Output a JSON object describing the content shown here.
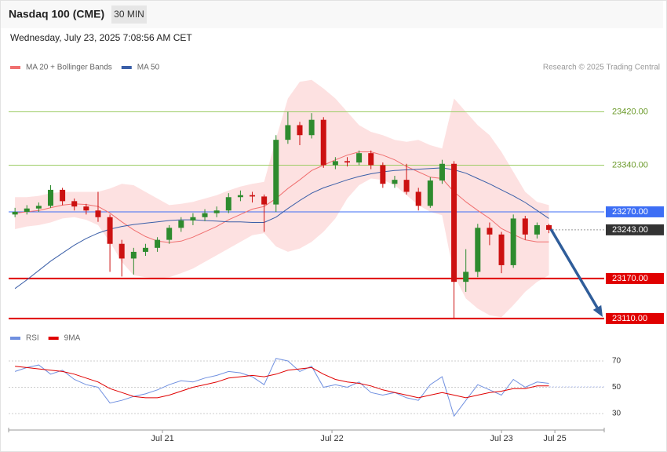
{
  "header": {
    "title": "Nasdaq 100 (CME)",
    "interval": "30 MIN",
    "timestamp": "Wednesday, July 23, 2025 7:08:56 AM CET",
    "credit": "Research © 2025 Trading Central"
  },
  "chart_data": [
    {
      "type": "candlestick",
      "legend": "top-left",
      "up_color": "#2e8b2e",
      "down_color": "#cc1111",
      "x": [
        -0.87,
        -0.8,
        -0.73,
        -0.66,
        -0.59,
        -0.52,
        -0.45,
        -0.38,
        -0.31,
        -0.24,
        -0.17,
        -0.1,
        -0.03,
        0.04,
        0.11,
        0.18,
        0.25,
        0.32,
        0.39,
        0.46,
        0.53,
        0.6,
        0.67,
        0.74,
        0.81,
        0.88,
        0.95,
        1.02,
        1.09,
        1.16,
        1.23,
        1.3,
        1.37,
        1.44,
        1.51,
        1.58,
        1.65,
        1.72,
        1.79,
        1.86,
        1.93,
        2.0,
        2.07,
        2.14,
        2.21,
        2.28
      ],
      "candles": [
        [
          23266,
          23276,
          23262,
          23270
        ],
        [
          23270,
          23280,
          23266,
          23275
        ],
        [
          23275,
          23284,
          23270,
          23279
        ],
        [
          23279,
          23310,
          23276,
          23303
        ],
        [
          23303,
          23306,
          23280,
          23286
        ],
        [
          23286,
          23290,
          23272,
          23278
        ],
        [
          23278,
          23282,
          23266,
          23272
        ],
        [
          23272,
          23300,
          23255,
          23262
        ],
        [
          23262,
          23266,
          23180,
          23222
        ],
        [
          23222,
          23228,
          23173,
          23200
        ],
        [
          23200,
          23216,
          23176,
          23210
        ],
        [
          23210,
          23222,
          23204,
          23216
        ],
        [
          23216,
          23232,
          23210,
          23228
        ],
        [
          23228,
          23250,
          23222,
          23246
        ],
        [
          23246,
          23262,
          23240,
          23257
        ],
        [
          23257,
          23268,
          23250,
          23262
        ],
        [
          23262,
          23274,
          23256,
          23268
        ],
        [
          23268,
          23278,
          23262,
          23272
        ],
        [
          23272,
          23298,
          23268,
          23292
        ],
        [
          23292,
          23302,
          23286,
          23295
        ],
        [
          23295,
          23300,
          23284,
          23293
        ],
        [
          23293,
          23296,
          23240,
          23281
        ],
        [
          23281,
          23385,
          23270,
          23378
        ],
        [
          23378,
          23420,
          23372,
          23400
        ],
        [
          23400,
          23405,
          23370,
          23385
        ],
        [
          23385,
          23418,
          23380,
          23408
        ],
        [
          23408,
          23412,
          23336,
          23340
        ],
        [
          23340,
          23352,
          23334,
          23346
        ],
        [
          23346,
          23352,
          23338,
          23344
        ],
        [
          23344,
          23362,
          23340,
          23358
        ],
        [
          23358,
          23362,
          23334,
          23340
        ],
        [
          23340,
          23344,
          23306,
          23312
        ],
        [
          23312,
          23324,
          23306,
          23318
        ],
        [
          23318,
          23342,
          23296,
          23300
        ],
        [
          23300,
          23306,
          23272,
          23279
        ],
        [
          23279,
          23322,
          23276,
          23317
        ],
        [
          23317,
          23348,
          23312,
          23342
        ],
        [
          23342,
          23346,
          23110,
          23165
        ],
        [
          23165,
          23214,
          23150,
          23180
        ],
        [
          23180,
          23252,
          23172,
          23246
        ],
        [
          23246,
          23254,
          23220,
          23236
        ],
        [
          23236,
          23240,
          23178,
          23190
        ],
        [
          23190,
          23266,
          23186,
          23260
        ],
        [
          23260,
          23264,
          23228,
          23236
        ],
        [
          23236,
          23254,
          23230,
          23250
        ],
        [
          23250,
          23252,
          23238,
          23243
        ]
      ],
      "series": [
        {
          "name": "MA 20 + Bollinger Bands",
          "color": "#f07070",
          "band_color": "#fde1e1",
          "values": [
            23268,
            23270,
            23272,
            23276,
            23280,
            23282,
            23281,
            23278,
            23268,
            23255,
            23243,
            23233,
            23226,
            23224,
            23226,
            23232,
            23240,
            23248,
            23258,
            23266,
            23274,
            23278,
            23290,
            23305,
            23318,
            23332,
            23340,
            23348,
            23355,
            23360,
            23360,
            23355,
            23348,
            23338,
            23330,
            23322,
            23320,
            23300,
            23285,
            23272,
            23260,
            23245,
            23236,
            23228,
            23225,
            23225
          ],
          "upper": [
            23292,
            23292,
            23294,
            23298,
            23300,
            23300,
            23300,
            23300,
            23305,
            23312,
            23310,
            23300,
            23290,
            23280,
            23282,
            23285,
            23290,
            23295,
            23302,
            23308,
            23312,
            23315,
            23380,
            23440,
            23465,
            23468,
            23455,
            23440,
            23420,
            23400,
            23390,
            23385,
            23378,
            23375,
            23378,
            23370,
            23365,
            23440,
            23420,
            23400,
            23385,
            23360,
            23330,
            23300,
            23285,
            23280
          ],
          "lower": [
            23244,
            23248,
            23250,
            23254,
            23260,
            23262,
            23258,
            23250,
            23225,
            23195,
            23175,
            23172,
            23170,
            23172,
            23178,
            23185,
            23195,
            23205,
            23215,
            23225,
            23235,
            23238,
            23218,
            23210,
            23215,
            23225,
            23240,
            23260,
            23290,
            23310,
            23320,
            23318,
            23310,
            23295,
            23280,
            23270,
            23265,
            23175,
            23140,
            23125,
            23115,
            23112,
            23130,
            23150,
            23165,
            23175
          ]
        },
        {
          "name": "MA 50",
          "color": "#3b5fa8",
          "values": [
            23155,
            23168,
            23182,
            23196,
            23208,
            23220,
            23230,
            23238,
            23244,
            23248,
            23251,
            23253,
            23255,
            23257,
            23258,
            23258,
            23257,
            23256,
            23255,
            23255,
            23254,
            23254,
            23262,
            23275,
            23287,
            23298,
            23306,
            23312,
            23318,
            23323,
            23327,
            23330,
            23332,
            23333,
            23334,
            23335,
            23336,
            23333,
            23328,
            23320,
            23312,
            23303,
            23294,
            23284,
            23272,
            23260
          ]
        }
      ],
      "levels": [
        {
          "value": 23420,
          "label": "23420.00",
          "color": "#9ccc65",
          "style": "line"
        },
        {
          "value": 23340,
          "label": "23340.00",
          "color": "#9ccc65",
          "style": "line"
        },
        {
          "value": 23270,
          "label": "23270.00",
          "color": "#3d6ef5",
          "style": "tag"
        },
        {
          "value": 23243,
          "label": "23243.00",
          "color": "#333333",
          "style": "dotted"
        },
        {
          "value": 23170,
          "label": "23170.00",
          "color": "#e00000",
          "style": "tag"
        },
        {
          "value": 23110,
          "label": "23110.00",
          "color": "#e00000",
          "style": "tag"
        }
      ],
      "xlim": [
        -0.903,
        2.606
      ],
      "ylim": [
        23104,
        23470
      ],
      "xticks": [
        {
          "value": 0,
          "label": "Jul 21"
        },
        {
          "value": 1,
          "label": "Jul 22"
        },
        {
          "value": 2,
          "label": "Jul 23"
        },
        {
          "value": 2.315,
          "label": "Jul 25"
        }
      ]
    },
    {
      "type": "line",
      "legend": "top-left",
      "series": [
        {
          "name": "RSI",
          "color": "#7090e0",
          "values": [
            62,
            65,
            67,
            60,
            63,
            56,
            52,
            50,
            38,
            40,
            43,
            45,
            48,
            52,
            55,
            54,
            57,
            59,
            62,
            61,
            58,
            52,
            72,
            70,
            62,
            66,
            50,
            52,
            50,
            54,
            46,
            44,
            46,
            42,
            40,
            52,
            58,
            28,
            40,
            52,
            48,
            44,
            56,
            50,
            54,
            53
          ]
        },
        {
          "name": "9MA",
          "color": "#e00000",
          "values": [
            66,
            65,
            64,
            63,
            62,
            60,
            57,
            54,
            49,
            46,
            43,
            42,
            42,
            44,
            47,
            50,
            52,
            54,
            57,
            58,
            59,
            58,
            60,
            63,
            64,
            65,
            60,
            56,
            54,
            53,
            51,
            48,
            46,
            44,
            42,
            44,
            46,
            44,
            42,
            44,
            46,
            47,
            49,
            49,
            51,
            51
          ]
        }
      ],
      "ylim": [
        24,
        76
      ],
      "yticks": [
        70,
        50,
        30
      ]
    }
  ]
}
